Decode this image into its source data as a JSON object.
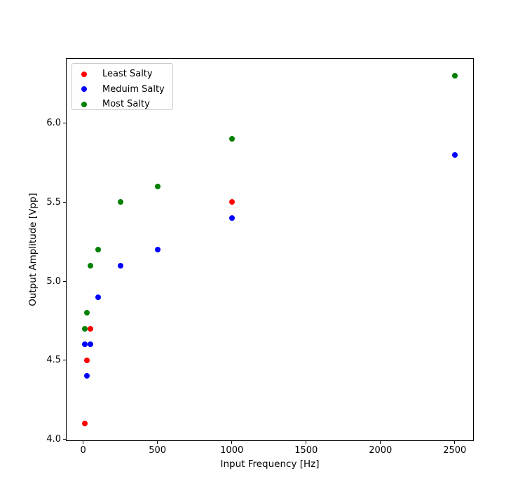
{
  "chart_data": {
    "type": "scatter",
    "title": "",
    "xlabel": "Input Frequency [Hz]",
    "ylabel": "Output Amplitude [Vpp]",
    "xlim": [
      -114,
      2626
    ],
    "ylim": [
      3.99,
      6.41
    ],
    "xticks": {
      "values": [
        0,
        500,
        1000,
        1500,
        2000,
        2500
      ],
      "labels": [
        "0",
        "500",
        "1000",
        "1500",
        "2000",
        "2500"
      ]
    },
    "yticks": {
      "values": [
        4.0,
        4.5,
        5.0,
        5.5,
        6.0
      ],
      "labels": [
        "4.0",
        "4.5",
        "5.0",
        "5.5",
        "6.0"
      ]
    },
    "grid": false,
    "marker": "circle",
    "legend": {
      "position": "upper left"
    },
    "series": [
      {
        "name": "Least Salty",
        "color": "#ff0000",
        "points": [
          {
            "x": 10,
            "y": 4.1
          },
          {
            "x": 25,
            "y": 4.5
          },
          {
            "x": 50,
            "y": 4.7
          },
          {
            "x": 1000,
            "y": 5.5
          }
        ]
      },
      {
        "name": "Meduim Salty",
        "color": "#0000ff",
        "points": [
          {
            "x": 10,
            "y": 4.6
          },
          {
            "x": 25,
            "y": 4.4
          },
          {
            "x": 50,
            "y": 4.6
          },
          {
            "x": 100,
            "y": 4.9
          },
          {
            "x": 250,
            "y": 5.1
          },
          {
            "x": 500,
            "y": 5.2
          },
          {
            "x": 1000,
            "y": 5.4
          },
          {
            "x": 2500,
            "y": 5.8
          }
        ]
      },
      {
        "name": "Most Salty",
        "color": "#008000",
        "points": [
          {
            "x": 10,
            "y": 4.7
          },
          {
            "x": 25,
            "y": 4.8
          },
          {
            "x": 50,
            "y": 5.1
          },
          {
            "x": 100,
            "y": 5.2
          },
          {
            "x": 250,
            "y": 5.5
          },
          {
            "x": 500,
            "y": 5.6
          },
          {
            "x": 1000,
            "y": 5.9
          },
          {
            "x": 2500,
            "y": 6.3
          }
        ]
      }
    ]
  },
  "colors": {
    "background": "#ffffff",
    "spine": "#000000",
    "text": "#000000",
    "legend_border": "#cccccc"
  }
}
